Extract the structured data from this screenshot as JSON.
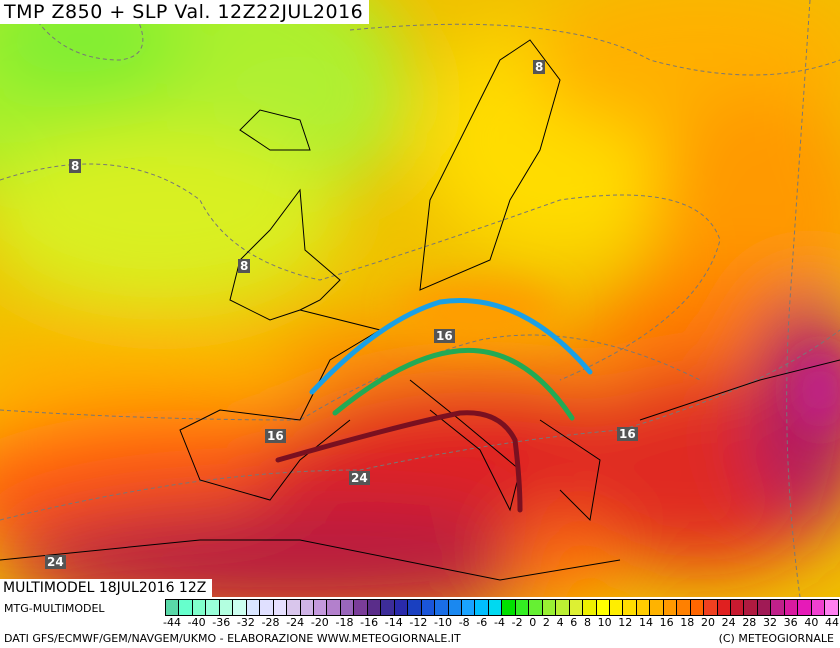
{
  "header": {
    "title": "TMP Z850 + SLP Val. 12Z22JUL2016"
  },
  "run_label": "MULTIMODEL 18JUL2016 12Z",
  "model_label": "MTG-MULTIMODEL",
  "credits": "DATI GFS/ECMWF/GEM/NAVGEM/UKMO - ELABORAZIONE WWW.METEOGIORNALE.IT",
  "copyright": "(C) METEOGIORNALE",
  "map_labels": [
    "8",
    "8",
    "8",
    "16",
    "16",
    "16",
    "24",
    "24"
  ],
  "legend": {
    "ticks": [
      "-44",
      "-40",
      "-36",
      "-32",
      "-28",
      "-24",
      "-20",
      "-18",
      "-16",
      "-14",
      "-12",
      "-10",
      "-8",
      "-6",
      "-4",
      "-2",
      "0",
      "2",
      "4",
      "6",
      "8",
      "10",
      "12",
      "14",
      "16",
      "18",
      "20",
      "24",
      "28",
      "32",
      "36",
      "40",
      "44"
    ],
    "colors": [
      "#5ad8a8",
      "#66ffcc",
      "#80ffcc",
      "#99ffd9",
      "#b3ffe0",
      "#ccfff0",
      "#d9e6ff",
      "#e0e0ff",
      "#e6e0ff",
      "#d9c6ec",
      "#cfb3e6",
      "#c499dd",
      "#b380cc",
      "#9966bb",
      "#7a3d99",
      "#5a2d8a",
      "#3d2d99",
      "#2a2aaa",
      "#1a40c0",
      "#1a55d9",
      "#1a6ee6",
      "#1a88f0",
      "#1aa3ff",
      "#00bfff",
      "#00d9f0",
      "#00e000",
      "#33ee22",
      "#66f033",
      "#99f033",
      "#bbf033",
      "#ddf033",
      "#eef000",
      "#ffff00",
      "#ffee00",
      "#ffdd00",
      "#ffcc00",
      "#ffb300",
      "#ff9900",
      "#ff8000",
      "#ff6600",
      "#f04020",
      "#e02020",
      "#c81a30",
      "#b01a40",
      "#a01a55",
      "#c0208a",
      "#d91aa0",
      "#e61ab8",
      "#f040d0",
      "#ff80f0"
    ]
  },
  "fronts": {
    "blue": "#1aa0e6",
    "green": "#22aa55",
    "darkred": "#7a1020"
  }
}
